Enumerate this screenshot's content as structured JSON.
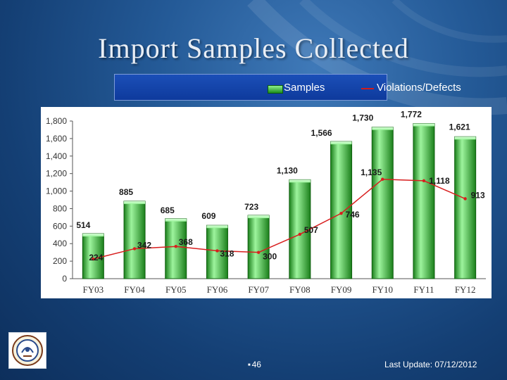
{
  "title": "Import Samples Collected",
  "legend": {
    "samples_label": "Samples",
    "violations_label": "Violations/Defects"
  },
  "colors": {
    "bar_top": "#9df49d",
    "bar_bottom": "#1b7f1b",
    "line": "#d81e1e",
    "label_text": "#1a1a1a"
  },
  "chart_data": {
    "type": "bar",
    "categories": [
      "FY03",
      "FY04",
      "FY05",
      "FY06",
      "FY07",
      "FY08",
      "FY09",
      "FY10",
      "FY11",
      "FY12"
    ],
    "series": [
      {
        "name": "Samples",
        "type": "bar",
        "values": [
          514,
          885,
          685,
          609,
          723,
          1130,
          1566,
          1730,
          1772,
          1621
        ]
      },
      {
        "name": "Violations/Defects",
        "type": "line",
        "values": [
          224,
          342,
          368,
          318,
          300,
          507,
          746,
          1135,
          1118,
          913
        ]
      }
    ],
    "bar_value_labels": [
      "514",
      "885",
      "685",
      "609",
      "723",
      "1,130",
      "1,566",
      "1,730",
      "1,772",
      "1,621"
    ],
    "line_value_labels": [
      "224",
      "342",
      "368",
      "318",
      "300",
      "507",
      "746",
      "1,135",
      "1,118",
      "913"
    ],
    "yticks": [
      0,
      200,
      400,
      600,
      800,
      1000,
      1200,
      1400,
      1600,
      1800
    ],
    "ytick_labels": [
      "0",
      "200",
      "400",
      "600",
      "800",
      "1,000",
      "1,200",
      "1,400",
      "1,600",
      "1,800"
    ],
    "ylim": [
      0,
      1800
    ],
    "grid": false,
    "legend_position": "top-center"
  },
  "footer": {
    "slide_number": "46",
    "last_update": "Last Update: 07/12/2012"
  }
}
